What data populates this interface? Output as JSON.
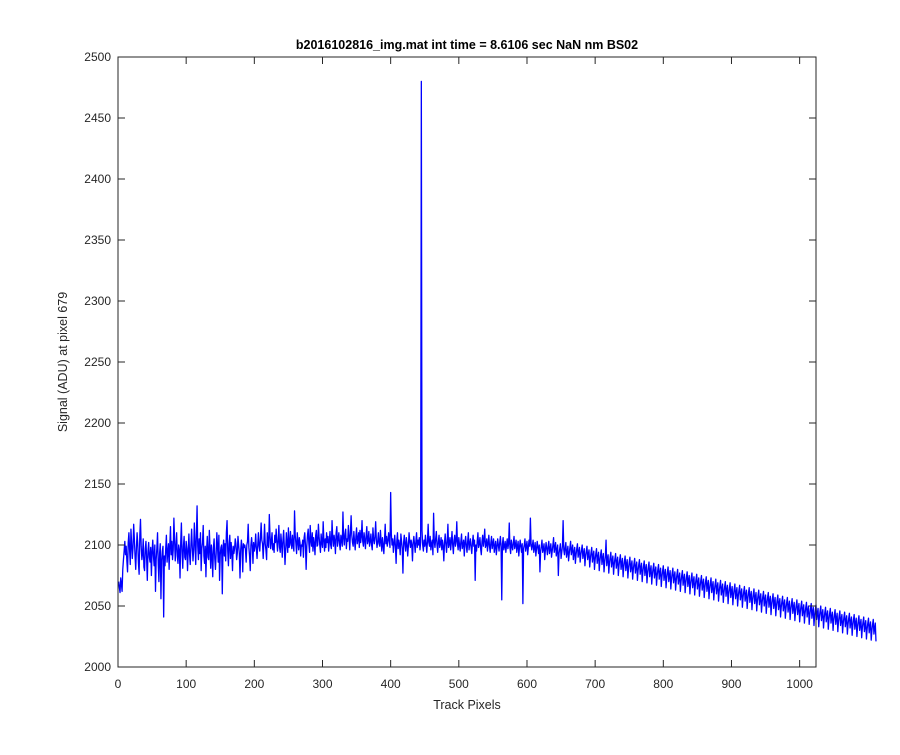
{
  "chart_data": {
    "type": "line",
    "title": "b2016102816_img.mat int time = 8.6106 sec  NaN nm BS02",
    "xlabel": "Track Pixels",
    "ylabel": "Signal (ADU) at pixel 679",
    "xlim": [
      0,
      1024
    ],
    "ylim": [
      2000,
      2500
    ],
    "xticks": [
      0,
      100,
      200,
      300,
      400,
      500,
      600,
      700,
      800,
      900,
      1000
    ],
    "yticks": [
      2000,
      2050,
      2100,
      2150,
      2200,
      2250,
      2300,
      2350,
      2400,
      2450,
      2500
    ],
    "grid": false,
    "legend": "none",
    "series": [
      {
        "color": "#0000ff",
        "x_start": 1,
        "x_step": 1,
        "values": [
          2070,
          2065,
          2061,
          2073,
          2068,
          2062,
          2080,
          2088,
          2095,
          2103,
          2092,
          2099,
          2087,
          2078,
          2102,
          2110,
          2096,
          2084,
          2113,
          2101,
          2089,
          2098,
          2117,
          2105,
          2091,
          2080,
          2097,
          2110,
          2101,
          2085,
          2076,
          2108,
          2121,
          2099,
          2088,
          2093,
          2105,
          2082,
          2079,
          2097,
          2103,
          2089,
          2071,
          2095,
          2102,
          2090,
          2086,
          2098,
          2075,
          2094,
          2104,
          2091,
          2083,
          2100,
          2062,
          2088,
          2097,
          2110,
          2085,
          2070,
          2093,
          2101,
          2056,
          2087,
          2095,
          2099,
          2041,
          2091,
          2083,
          2097,
          2108,
          2086,
          2094,
          2101,
          2080,
          2099,
          2115,
          2092,
          2103,
          2088,
          2096,
          2122,
          2104,
          2087,
          2099,
          2110,
          2091,
          2085,
          2100,
          2096,
          2073,
          2102,
          2118,
          2094,
          2081,
          2099,
          2107,
          2090,
          2088,
          2103,
          2097,
          2079,
          2095,
          2109,
          2092,
          2084,
          2100,
          2113,
          2098,
          2087,
          2096,
          2118,
          2101,
          2084,
          2108,
          2132,
          2099,
          2088,
          2105,
          2093,
          2110,
          2079,
          2097,
          2102,
          2116,
          2091,
          2085,
          2099,
          2074,
          2096,
          2107,
          2090,
          2088,
          2112,
          2097,
          2081,
          2100,
          2091,
          2074,
          2098,
          2105,
          2089,
          2080,
          2093,
          2110,
          2099,
          2086,
          2108,
          2071,
          2092,
          2098,
          2100,
          2060,
          2096,
          2104,
          2091,
          2101,
          2087,
          2110,
          2120,
          2095,
          2083,
          2101,
          2108,
          2089,
          2102,
          2094,
          2079,
          2099,
          2093,
          2097,
          2105,
          2101,
          2088,
          2093,
          2107,
          2100,
          2093,
          2073,
          2096,
          2104,
          2098,
          2078,
          2101,
          2098,
          2100,
          2096,
          2086,
          2100,
          2103,
          2117,
          2098,
          2091,
          2079,
          2100,
          2106,
          2099,
          2085,
          2102,
          2095,
          2099,
          2109,
          2097,
          2089,
          2100,
          2110,
          2099,
          2095,
          2106,
          2118,
          2104,
          2101,
          2089,
          2102,
          2117,
          2101,
          2096,
          2088,
          2110,
          2101,
          2098,
          2125,
          2108,
          2097,
          2103,
          2110,
          2096,
          2101,
          2094,
          2108,
          2102,
          2113,
          2103,
          2095,
          2104,
          2116,
          2098,
          2094,
          2109,
          2101,
          2090,
          2104,
          2112,
          2099,
          2084,
          2096,
          2110,
          2101,
          2094,
          2114,
          2098,
          2100,
          2111,
          2102,
          2097,
          2108,
          2100,
          2095,
          2128,
          2108,
          2101,
          2093,
          2110,
          2103,
          2096,
          2106,
          2102,
          2091,
          2100,
          2099,
          2104,
          2090,
          2106,
          2110,
          2100,
          2080,
          2099,
          2108,
          2113,
          2101,
          2094,
          2116,
          2104,
          2099,
          2110,
          2095,
          2106,
          2101,
          2092,
          2108,
          2112,
          2099,
          2100,
          2117,
          2107,
          2100,
          2094,
          2109,
          2102,
          2098,
          2119,
          2104,
          2095,
          2105,
          2098,
          2110,
          2102,
          2107,
          2095,
          2103,
          2111,
          2100,
          2097,
          2120,
          2106,
          2099,
          2108,
          2103,
          2093,
          2110,
          2115,
          2099,
          2105,
          2110,
          2101,
          2096,
          2108,
          2104,
          2099,
          2127,
          2106,
          2100,
          2109,
          2113,
          2097,
          2105,
          2103,
          2116,
          2107,
          2096,
          2110,
          2124,
          2108,
          2102,
          2099,
          2111,
          2103,
          2096,
          2107,
          2114,
          2101,
          2105,
          2110,
          2098,
          2112,
          2102,
          2107,
          2120,
          2103,
          2099,
          2110,
          2104,
          2097,
          2108,
          2115,
          2101,
          2104,
          2111,
          2099,
          2103,
          2109,
          2100,
          2096,
          2114,
          2105,
          2101,
          2107,
          2119,
          2104,
          2098,
          2103,
          2110,
          2101,
          2099,
          2112,
          2103,
          2095,
          2106,
          2100,
          2093,
          2104,
          2117,
          2101,
          2107,
          2099,
          2103,
          2110,
          2104,
          2098,
          2143,
          2109,
          2100,
          2105,
          2094,
          2101,
          2108,
          2099,
          2085,
          2103,
          2110,
          2097,
          2104,
          2100,
          2092,
          2109,
          2103,
          2097,
          2077,
          2102,
          2108,
          2100,
          2095,
          2106,
          2101,
          2091,
          2099,
          2110,
          2103,
          2098,
          2104,
          2100,
          2087,
          2102,
          2107,
          2101,
          2094,
          2103,
          2110,
          2098,
          2104,
          2100,
          2106,
          2096,
          2102,
          2480,
          2112,
          2100,
          2095,
          2104,
          2099,
          2108,
          2101,
          2094,
          2103,
          2117,
          2102,
          2099,
          2107,
          2096,
          2101,
          2104,
          2092,
          2126,
          2103,
          2098,
          2105,
          2111,
          2100,
          2094,
          2103,
          2108,
          2098,
          2101,
          2106,
          2096,
          2104,
          2099,
          2087,
          2102,
          2109,
          2101,
          2094,
          2103,
          2117,
          2098,
          2101,
          2106,
          2096,
          2102,
          2111,
          2100,
          2093,
          2104,
          2108,
          2099,
          2103,
          2119,
          2101,
          2096,
          2106,
          2100,
          2095,
          2103,
          2109,
          2097,
          2100,
          2104,
          2091,
          2102,
          2107,
          2099,
          2094,
          2103,
          2110,
          2096,
          2101,
          2105,
          2098,
          2093,
          2102,
          2108,
          2099,
          2104,
          2071,
          2100,
          2095,
          2103,
          2110,
          2098,
          2101,
          2106,
          2097,
          2092,
          2103,
          2108,
          2099,
          2104,
          2113,
          2098,
          2100,
          2105,
          2095,
          2101,
          2108,
          2099,
          2094,
          2102,
          2107,
          2097,
          2101,
          2105,
          2094,
          2099,
          2103,
          2092,
          2098,
          2105,
          2100,
          2095,
          2102,
          2107,
          2098,
          2055,
          2101,
          2106,
          2096,
          2099,
          2103,
          2094,
          2100,
          2105,
          2097,
          2101,
          2118,
          2098,
          2093,
          2104,
          2099,
          2096,
          2102,
          2107,
          2097,
          2100,
          2104,
          2094,
          2099,
          2103,
          2091,
          2098,
          2104,
          2099,
          2094,
          2101,
          2052,
          2097,
          2100,
          2105,
          2095,
          2099,
          2103,
          2092,
          2098,
          2104,
          2099,
          2122,
          2101,
          2096,
          2100,
          2104,
          2094,
          2098,
          2102,
          2091,
          2097,
          2103,
          2098,
          2093,
          2100,
          2078,
          2095,
          2099,
          2104,
          2094,
          2097,
          2101,
          2088,
          2096,
          2102,
          2097,
          2092,
          2099,
          2103,
          2093,
          2097,
          2101,
          2090,
          2095,
          2100,
          2106,
          2094,
          2098,
          2102,
          2091,
          2096,
          2100,
          2075,
          2093,
          2097,
          2101,
          2089,
          2094,
          2099,
          2120,
          2096,
          2092,
          2098,
          2102,
          2090,
          2094,
          2099,
          2087,
          2093,
          2098,
          2103,
          2092,
          2096,
          2100,
          2088,
          2094,
          2098,
          2085,
          2092,
          2097,
          2101,
          2090,
          2094,
          2098,
          2086,
          2092,
          2096,
          2100,
          2089,
          2093,
          2097,
          2083,
          2091,
          2095,
          2099,
          2088,
          2092,
          2096,
          2082,
          2089,
          2094,
          2098,
          2086,
          2091,
          2095,
          2080,
          2088,
          2093,
          2097,
          2085,
          2090,
          2094,
          2079,
          2087,
          2092,
          2096,
          2084,
          2089,
          2093,
          2078,
          2086,
          2091,
          2104,
          2083,
          2088,
          2092,
          2077,
          2085,
          2090,
          2094,
          2082,
          2087,
          2091,
          2076,
          2084,
          2089,
          2093,
          2081,
          2086,
          2090,
          2075,
          2083,
          2088,
          2092,
          2080,
          2085,
          2089,
          2074,
          2082,
          2087,
          2091,
          2079,
          2084,
          2088,
          2073,
          2081,
          2086,
          2090,
          2078,
          2083,
          2087,
          2072,
          2080,
          2085,
          2089,
          2077,
          2082,
          2086,
          2071,
          2079,
          2084,
          2088,
          2076,
          2081,
          2085,
          2070,
          2078,
          2083,
          2087,
          2075,
          2080,
          2084,
          2069,
          2077,
          2082,
          2086,
          2074,
          2079,
          2083,
          2068,
          2076,
          2081,
          2085,
          2073,
          2078,
          2082,
          2067,
          2075,
          2080,
          2084,
          2072,
          2077,
          2081,
          2066,
          2074,
          2079,
          2083,
          2071,
          2076,
          2080,
          2065,
          2073,
          2078,
          2082,
          2070,
          2075,
          2079,
          2064,
          2072,
          2077,
          2081,
          2069,
          2074,
          2078,
          2063,
          2071,
          2076,
          2080,
          2068,
          2073,
          2077,
          2062,
          2070,
          2075,
          2079,
          2067,
          2072,
          2076,
          2061,
          2069,
          2074,
          2078,
          2066,
          2071,
          2075,
          2060,
          2068,
          2073,
          2077,
          2065,
          2070,
          2074,
          2059,
          2067,
          2072,
          2076,
          2064,
          2069,
          2073,
          2058,
          2066,
          2071,
          2075,
          2063,
          2068,
          2072,
          2057,
          2065,
          2070,
          2074,
          2062,
          2067,
          2071,
          2056,
          2064,
          2069,
          2073,
          2061,
          2066,
          2070,
          2055,
          2063,
          2068,
          2072,
          2060,
          2065,
          2069,
          2054,
          2062,
          2067,
          2071,
          2059,
          2064,
          2068,
          2053,
          2061,
          2066,
          2070,
          2058,
          2063,
          2067,
          2052,
          2060,
          2065,
          2069,
          2057,
          2062,
          2066,
          2051,
          2059,
          2064,
          2068,
          2056,
          2061,
          2065,
          2050,
          2058,
          2063,
          2067,
          2055,
          2060,
          2064,
          2049,
          2057,
          2062,
          2066,
          2054,
          2059,
          2063,
          2048,
          2056,
          2061,
          2065,
          2053,
          2058,
          2062,
          2047,
          2055,
          2060,
          2064,
          2052,
          2057,
          2061,
          2046,
          2054,
          2059,
          2063,
          2051,
          2056,
          2060,
          2045,
          2053,
          2058,
          2062,
          2050,
          2055,
          2059,
          2044,
          2052,
          2057,
          2061,
          2049,
          2054,
          2058,
          2043,
          2051,
          2056,
          2060,
          2048,
          2053,
          2057,
          2042,
          2050,
          2055,
          2059,
          2047,
          2052,
          2056,
          2041,
          2049,
          2054,
          2058,
          2046,
          2051,
          2055,
          2040,
          2048,
          2053,
          2057,
          2045,
          2050,
          2054,
          2039,
          2047,
          2052,
          2056,
          2044,
          2049,
          2053,
          2038,
          2046,
          2051,
          2055,
          2043,
          2048,
          2052,
          2037,
          2045,
          2050,
          2054,
          2042,
          2047,
          2051,
          2036,
          2044,
          2049,
          2053,
          2041,
          2046,
          2050,
          2035,
          2043,
          2048,
          2052,
          2040,
          2045,
          2049,
          2034,
          2042,
          2047,
          2051,
          2039,
          2044,
          2048,
          2033,
          2041,
          2046,
          2050,
          2038,
          2043,
          2047,
          2032,
          2040,
          2045,
          2049,
          2037,
          2042,
          2046,
          2031,
          2039,
          2044,
          2048,
          2036,
          2041,
          2045,
          2030,
          2038,
          2043,
          2047,
          2035,
          2040,
          2044,
          2029,
          2037,
          2042,
          2046,
          2034,
          2039,
          2043,
          2028,
          2036,
          2041,
          2045,
          2033,
          2038,
          2042,
          2027,
          2035,
          2040,
          2044,
          2032,
          2037,
          2041,
          2026,
          2034,
          2039,
          2043,
          2031,
          2036,
          2040,
          2025,
          2033,
          2038,
          2042,
          2030,
          2035,
          2039,
          2024,
          2032,
          2037,
          2041,
          2029,
          2034,
          2038,
          2023,
          2031,
          2036,
          2040,
          2028,
          2033,
          2037,
          2022,
          2030,
          2035,
          2039,
          2027,
          2032,
          2036,
          2021
        ]
      }
    ]
  }
}
